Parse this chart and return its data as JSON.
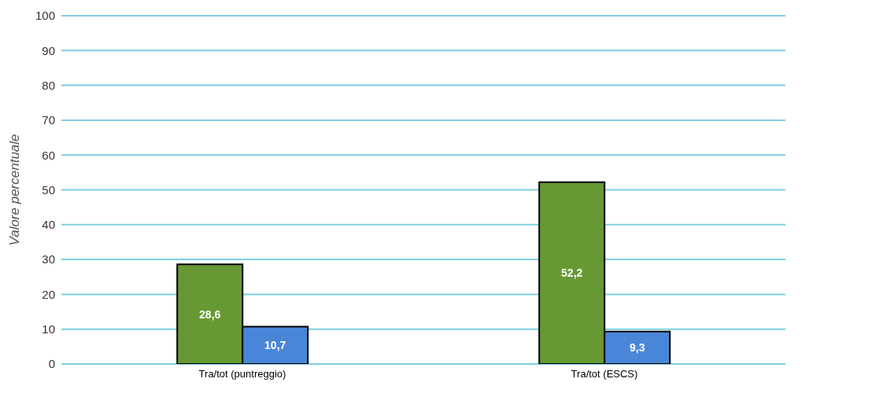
{
  "chart_data": {
    "type": "bar",
    "ylabel": "Valore percentuale",
    "categories": [
      "Tra/tot (puntreggio)",
      "Tra/tot (ESCS)"
    ],
    "series": [
      {
        "color": "#669933",
        "values": [
          28.6,
          52.2
        ],
        "value_labels": [
          "28,6",
          "52,2"
        ]
      },
      {
        "color": "#4a86d8",
        "values": [
          10.7,
          9.3
        ],
        "value_labels": [
          "10,7",
          "9,3"
        ]
      }
    ],
    "ylim": [
      0,
      100
    ],
    "yticks": [
      0,
      10,
      20,
      30,
      40,
      50,
      60,
      70,
      80,
      90,
      100
    ],
    "grid": "y"
  }
}
